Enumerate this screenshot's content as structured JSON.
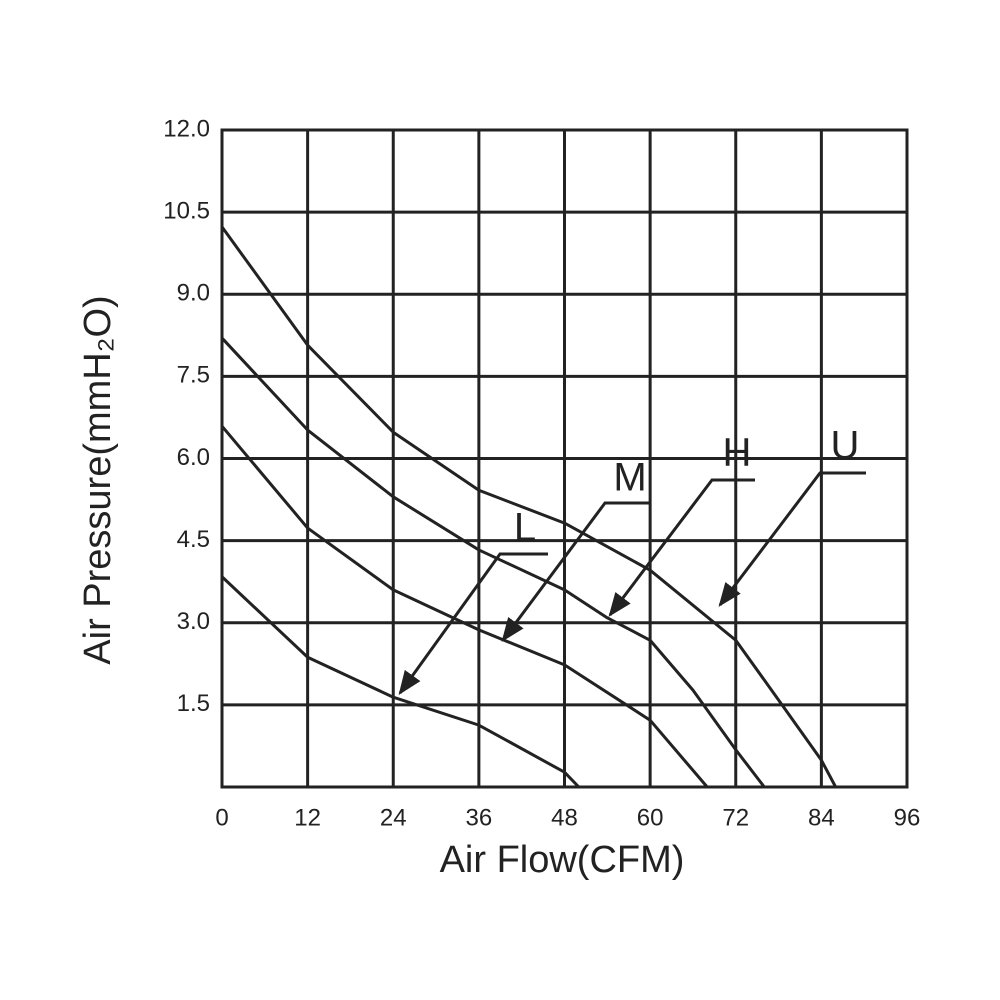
{
  "chart_data": {
    "type": "line",
    "xlabel": "Air Flow(CFM)",
    "ylabel": "Air Pressure(mmH₂O)",
    "xlim": [
      0,
      96
    ],
    "ylim": [
      0,
      12
    ],
    "xticks": [
      0,
      12,
      24,
      36,
      48,
      60,
      72,
      84,
      96
    ],
    "yticks": [
      1.5,
      {
        "value": 3,
        "label": "3.0"
      },
      4.5,
      {
        "value": 6,
        "label": "6.0"
      },
      7.5,
      {
        "value": 9,
        "label": "9.0"
      },
      10.5,
      {
        "value": 12,
        "label": "12.0"
      }
    ],
    "grid": true,
    "color": "#222222",
    "series": [
      {
        "name": "L",
        "x": [
          0,
          12,
          24,
          36,
          48,
          50
        ],
        "values": [
          3.84,
          2.37,
          1.64,
          1.13,
          0.27,
          0
        ]
      },
      {
        "name": "M",
        "x": [
          0,
          12,
          24,
          36,
          48,
          60,
          68
        ],
        "values": [
          6.59,
          4.73,
          3.6,
          2.87,
          2.23,
          1.22,
          0
        ]
      },
      {
        "name": "H",
        "x": [
          0,
          12,
          24,
          36,
          48,
          54,
          60,
          66,
          72,
          76
        ],
        "values": [
          8.2,
          6.52,
          5.3,
          4.33,
          3.6,
          3.09,
          2.68,
          1.77,
          0.68,
          0
        ]
      },
      {
        "name": "U",
        "x": [
          0,
          12,
          24,
          36,
          48,
          60,
          72,
          78,
          84,
          86
        ],
        "values": [
          10.23,
          8.07,
          6.48,
          5.42,
          4.82,
          3.96,
          2.68,
          1.59,
          0.49,
          0
        ]
      }
    ]
  }
}
